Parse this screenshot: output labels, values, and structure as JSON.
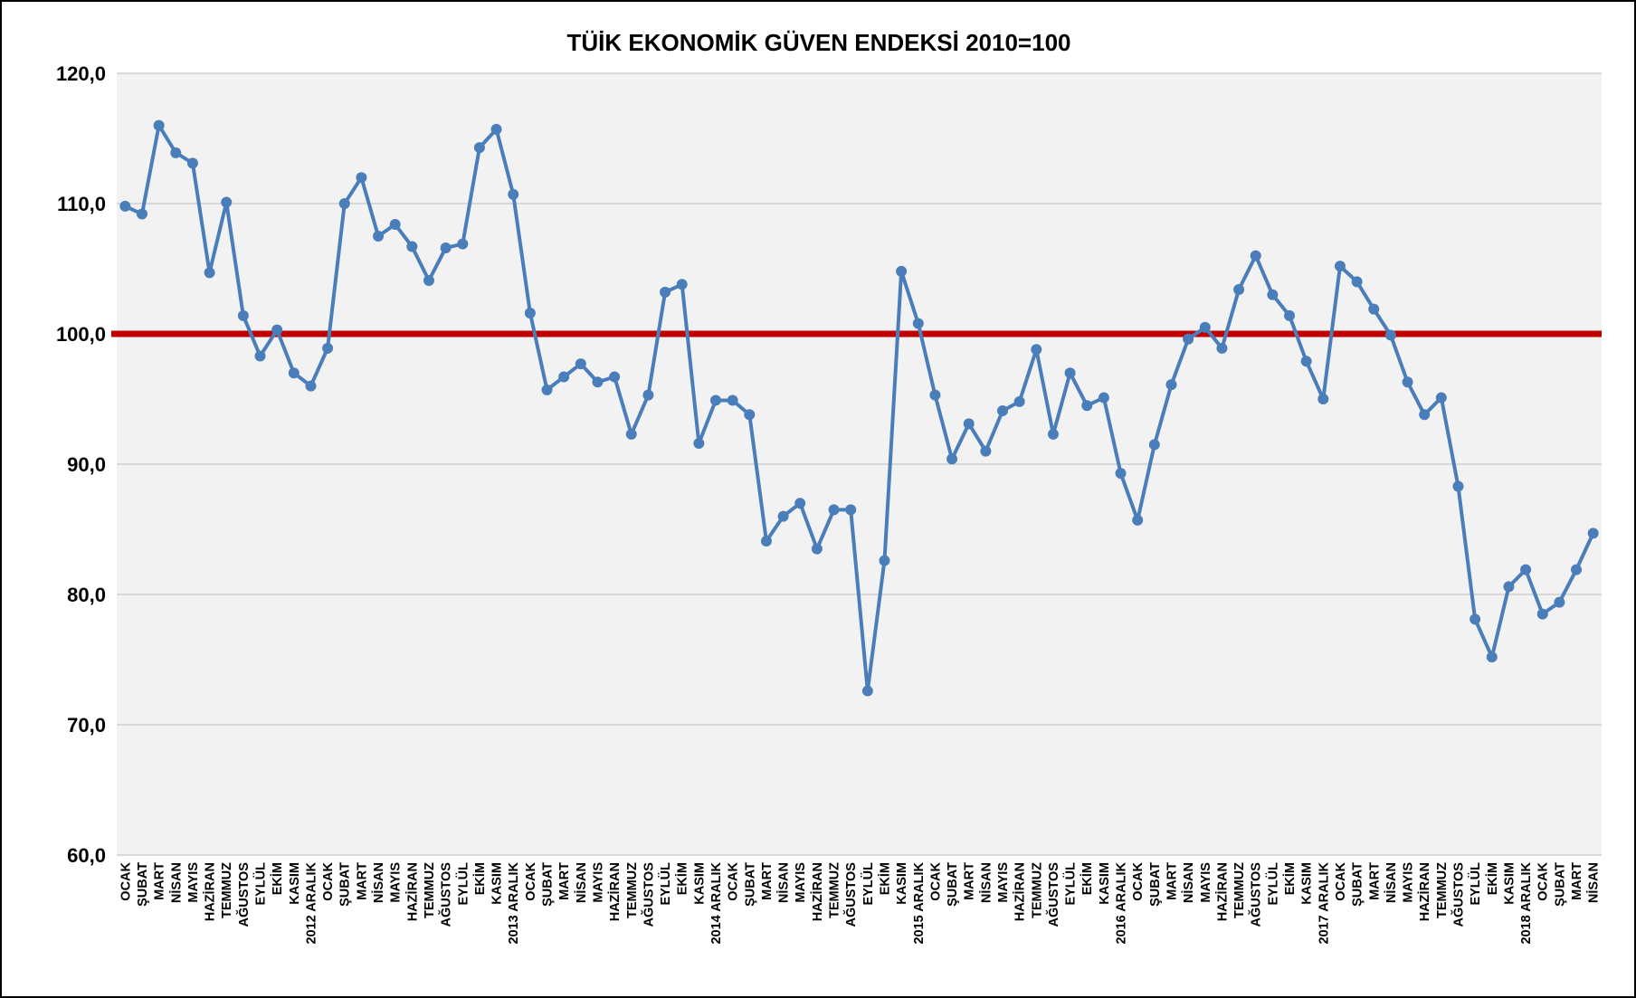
{
  "chart_data": {
    "type": "line",
    "title": "TÜİK EKONOMİK GÜVEN ENDEKSİ 2010=100",
    "categories": [
      "OCAK",
      "ŞUBAT",
      "MART",
      "NİSAN",
      "MAYIS",
      "HAZİRAN",
      "TEMMUZ",
      "AĞUSTOS",
      "EYLÜL",
      "EKİM",
      "KASIM",
      "2012 ARALIK",
      "OCAK",
      "ŞUBAT",
      "MART",
      "NİSAN",
      "MAYIS",
      "HAZİRAN",
      "TEMMUZ",
      "AĞUSTOS",
      "EYLÜL",
      "EKİM",
      "KASIM",
      "2013 ARALIK",
      "OCAK",
      "ŞUBAT",
      "MART",
      "NİSAN",
      "MAYIS",
      "HAZİRAN",
      "TEMMUZ",
      "AĞUSTOS",
      "EYLÜL",
      "EKİM",
      "KASIM",
      "2014 ARALIK",
      "OCAK",
      "ŞUBAT",
      "MART",
      "NİSAN",
      "MAYIS",
      "HAZİRAN",
      "TEMMUZ",
      "AĞUSTOS",
      "EYLÜL",
      "EKİM",
      "KASIM",
      "2015 ARALIK",
      "OCAK",
      "ŞUBAT",
      "MART",
      "NİSAN",
      "MAYIS",
      "HAZİRAN",
      "TEMMUZ",
      "AĞUSTOS",
      "EYLÜL",
      "EKİM",
      "KASIM",
      "2016 ARALIK",
      "OCAK",
      "ŞUBAT",
      "MART",
      "NİSAN",
      "MAYIS",
      "HAZİRAN",
      "TEMMUZ",
      "AĞUSTOS",
      "EYLÜL",
      "EKİM",
      "KASIM",
      "2017 ARALIK",
      "OCAK",
      "ŞUBAT",
      "MART",
      "NİSAN",
      "MAYIS",
      "HAZİRAN",
      "TEMMUZ",
      "AĞUSTOS",
      "EYLÜL",
      "EKİM",
      "KASIM",
      "2018 ARALIK",
      "OCAK",
      "ŞUBAT",
      "MART",
      "NİSAN"
    ],
    "series": [
      {
        "color": "#4a7ebb",
        "values": [
          109.8,
          109.2,
          116.0,
          113.9,
          113.1,
          104.7,
          110.1,
          101.4,
          98.3,
          100.3,
          97.0,
          96.0,
          98.9,
          110.0,
          112.0,
          107.5,
          108.4,
          106.7,
          104.1,
          106.6,
          106.9,
          114.3,
          115.7,
          110.7,
          101.6,
          95.7,
          96.7,
          97.7,
          96.3,
          96.7,
          92.3,
          95.3,
          103.2,
          103.8,
          91.6,
          94.9,
          94.9,
          93.8,
          84.1,
          86.0,
          87.0,
          83.5,
          86.5,
          86.5,
          72.6,
          82.6,
          104.8,
          100.8,
          95.3,
          90.4,
          93.1,
          91.0,
          94.1,
          94.8,
          98.8,
          92.3,
          97.0,
          94.5,
          95.1,
          89.3,
          85.7,
          91.5,
          96.1,
          99.6,
          100.5,
          98.9,
          103.4,
          106.0,
          103.0,
          101.4,
          97.9,
          95.0,
          105.2,
          104.0,
          101.9,
          99.9,
          96.3,
          93.8,
          95.1,
          88.3,
          78.1,
          75.2,
          80.6,
          81.9,
          78.5,
          79.4,
          81.9,
          84.7
        ]
      }
    ],
    "reference_line": {
      "value": 100,
      "color": "#c00000"
    },
    "ylim": [
      60,
      120
    ],
    "yticks": [
      {
        "value": 60,
        "label": "60,0"
      },
      {
        "value": 70,
        "label": "70,0"
      },
      {
        "value": 80,
        "label": "80,0"
      },
      {
        "value": 90,
        "label": "90,0"
      },
      {
        "value": 100,
        "label": "100,0"
      },
      {
        "value": 110,
        "label": "110,0"
      },
      {
        "value": 120,
        "label": "120,0"
      }
    ],
    "grid": true
  }
}
